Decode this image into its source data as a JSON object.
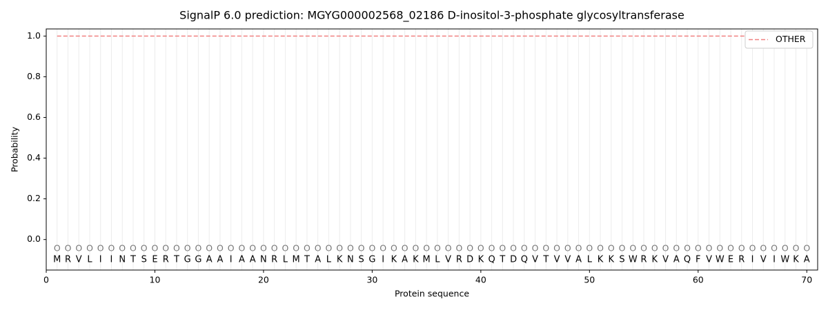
{
  "chart_data": {
    "type": "line",
    "title": "SignalP 6.0 prediction: MGYG000002568_02186 D-inositol-3-phosphate glycosyltransferase",
    "xlabel": "Protein sequence",
    "ylabel": "Probability",
    "x": [
      1,
      2,
      3,
      4,
      5,
      6,
      7,
      8,
      9,
      10,
      11,
      12,
      13,
      14,
      15,
      16,
      17,
      18,
      19,
      20,
      21,
      22,
      23,
      24,
      25,
      26,
      27,
      28,
      29,
      30,
      31,
      32,
      33,
      34,
      35,
      36,
      37,
      38,
      39,
      40,
      41,
      42,
      43,
      44,
      45,
      46,
      47,
      48,
      49,
      50,
      51,
      52,
      53,
      54,
      55,
      56,
      57,
      58,
      59,
      60,
      61,
      62,
      63,
      64,
      65,
      66,
      67,
      68,
      69,
      70
    ],
    "series": [
      {
        "name": "OTHER",
        "color": "#f08080",
        "linestyle": "dashed",
        "values": [
          1,
          1,
          1,
          1,
          1,
          1,
          1,
          1,
          1,
          1,
          1,
          1,
          1,
          1,
          1,
          1,
          1,
          1,
          1,
          1,
          1,
          1,
          1,
          1,
          1,
          1,
          1,
          1,
          1,
          1,
          1,
          1,
          1,
          1,
          1,
          1,
          1,
          1,
          1,
          1,
          1,
          1,
          1,
          1,
          1,
          1,
          1,
          1,
          1,
          1,
          1,
          1,
          1,
          1,
          1,
          1,
          1,
          1,
          1,
          1,
          1,
          1,
          1,
          1,
          1,
          1,
          1,
          1,
          1,
          1
        ]
      }
    ],
    "residues": [
      "M",
      "R",
      "V",
      "L",
      "I",
      "I",
      "N",
      "T",
      "S",
      "E",
      "R",
      "T",
      "G",
      "G",
      "A",
      "A",
      "I",
      "A",
      "A",
      "N",
      "R",
      "L",
      "M",
      "T",
      "A",
      "L",
      "K",
      "N",
      "S",
      "G",
      "I",
      "K",
      "A",
      "K",
      "M",
      "L",
      "V",
      "R",
      "D",
      "K",
      "Q",
      "T",
      "D",
      "Q",
      "V",
      "T",
      "V",
      "V",
      "A",
      "L",
      "K",
      "K",
      "S",
      "W",
      "R",
      "K",
      "V",
      "A",
      "Q",
      "F",
      "V",
      "W",
      "E",
      "R",
      "I",
      "V",
      "I",
      "W",
      "K",
      "A"
    ],
    "state_labels": [
      "O",
      "O",
      "O",
      "O",
      "O",
      "O",
      "O",
      "O",
      "O",
      "O",
      "O",
      "O",
      "O",
      "O",
      "O",
      "O",
      "O",
      "O",
      "O",
      "O",
      "O",
      "O",
      "O",
      "O",
      "O",
      "O",
      "O",
      "O",
      "O",
      "O",
      "O",
      "O",
      "O",
      "O",
      "O",
      "O",
      "O",
      "O",
      "O",
      "O",
      "O",
      "O",
      "O",
      "O",
      "O",
      "O",
      "O",
      "O",
      "O",
      "O",
      "O",
      "O",
      "O",
      "O",
      "O",
      "O",
      "O",
      "O",
      "O",
      "O",
      "O",
      "O",
      "O",
      "O",
      "O",
      "O",
      "O",
      "O",
      "O",
      "O"
    ],
    "xlim": [
      0,
      71
    ],
    "ylim": [
      -0.15,
      1.035
    ],
    "xticks": [
      0,
      10,
      20,
      30,
      40,
      50,
      60,
      70
    ],
    "yticks": [
      {
        "value": 0,
        "label": "0.0"
      },
      0.2,
      0.4,
      0.6,
      0.8,
      {
        "value": 1,
        "label": "1.0"
      }
    ],
    "legend": "upper right"
  }
}
